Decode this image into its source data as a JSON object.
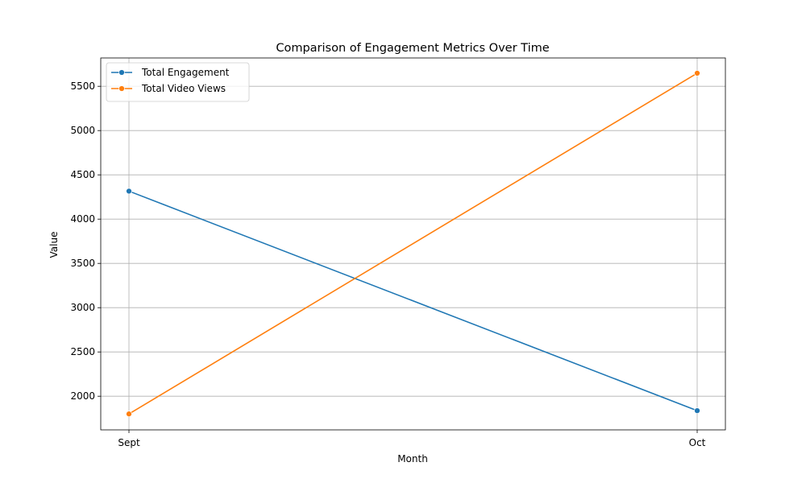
{
  "chart_data": {
    "type": "line",
    "title": "Comparison of Engagement Metrics Over Time",
    "xlabel": "Month",
    "ylabel": "Value",
    "categories": [
      "Sept",
      "Oct"
    ],
    "ylim": [
      1620,
      5820
    ],
    "yticks": [
      2000,
      2500,
      3000,
      3500,
      4000,
      4500,
      5000,
      5500
    ],
    "grid": true,
    "legend_position": "top-left",
    "series": [
      {
        "name": "Total Engagement",
        "values": [
          4316,
          1837
        ],
        "color": "#1f77b4"
      },
      {
        "name": "Total Video Views",
        "values": [
          1800,
          5648
        ],
        "color": "#ff7f0e"
      }
    ]
  }
}
